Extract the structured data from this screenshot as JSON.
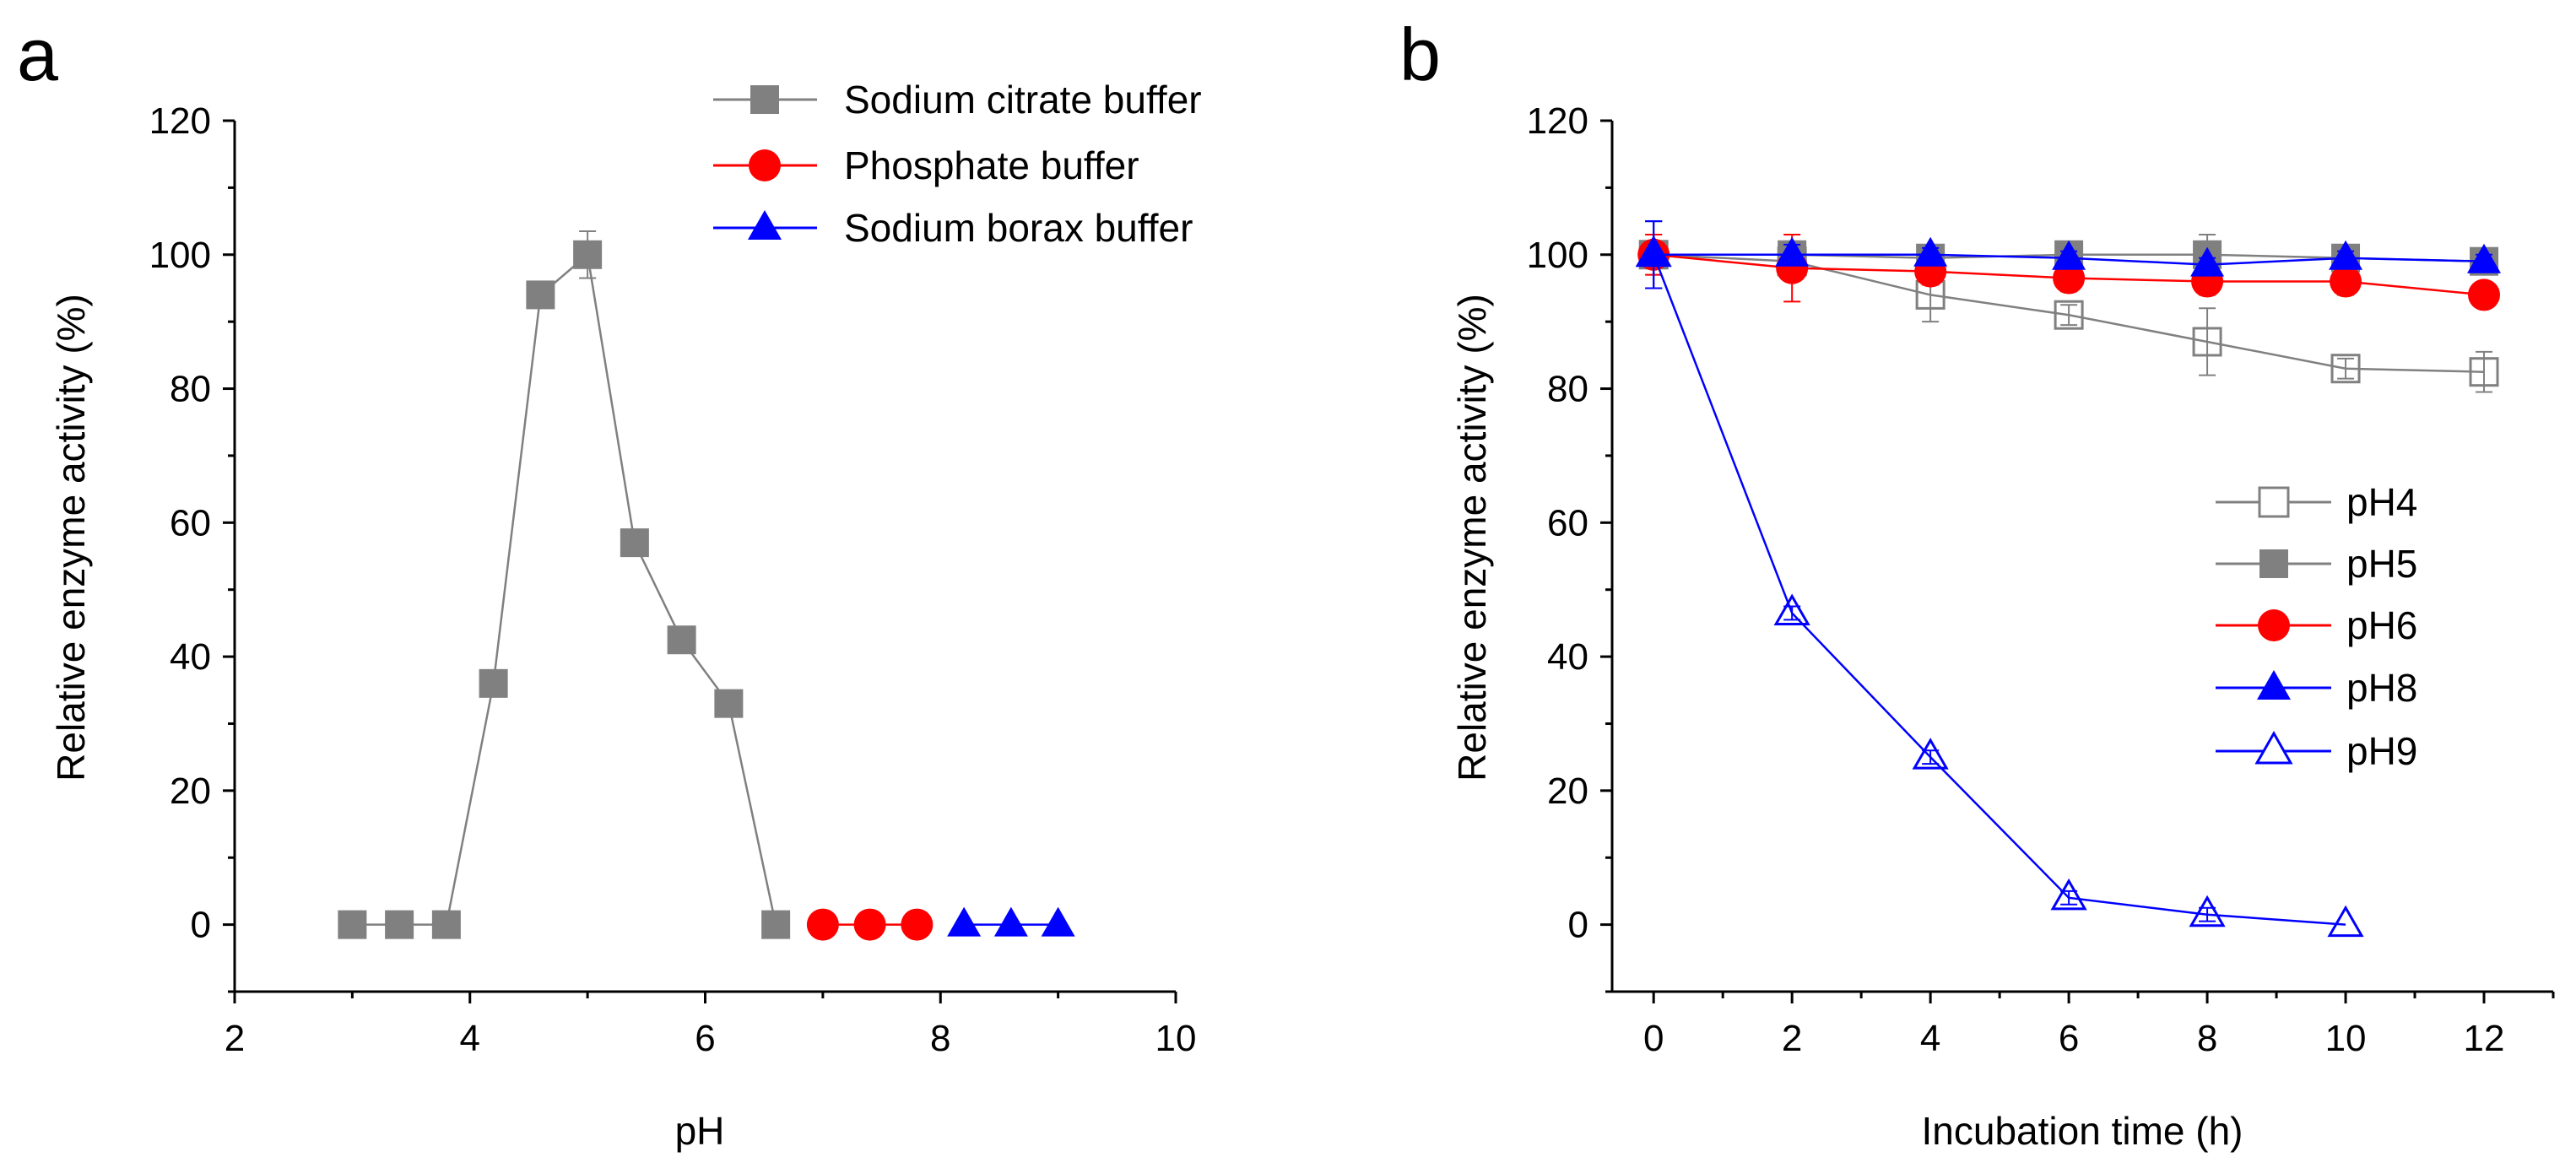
{
  "chart_data": [
    {
      "panel_label": "a",
      "type": "line",
      "xlabel": "pH",
      "ylabel": "Relative enzyme activity (%)",
      "xlim": [
        2,
        10
      ],
      "ylim": [
        -10,
        120
      ],
      "xticks": [
        2,
        4,
        6,
        8,
        10
      ],
      "yticks": [
        0,
        20,
        40,
        60,
        80,
        100,
        120
      ],
      "grid": false,
      "legend_position": "top-right",
      "series": [
        {
          "name": "Sodium citrate buffer",
          "color": "#808080",
          "marker": "square-filled",
          "x": [
            3.0,
            3.4,
            3.8,
            4.2,
            4.6,
            5.0,
            5.4,
            5.8,
            6.2,
            6.6
          ],
          "y": [
            0,
            0,
            0,
            36,
            94,
            100,
            57,
            42.5,
            33,
            0
          ],
          "error": [
            0,
            0,
            0,
            0,
            0,
            3.5,
            0,
            0,
            0,
            0
          ]
        },
        {
          "name": "Phosphate buffer",
          "color": "#ff0000",
          "marker": "circle-filled",
          "x": [
            7.0,
            7.4,
            7.8
          ],
          "y": [
            0,
            0,
            0
          ],
          "error": [
            0,
            0,
            0
          ]
        },
        {
          "name": "Sodium borax buffer",
          "color": "#0000ff",
          "marker": "triangle-filled",
          "x": [
            8.2,
            8.6,
            9.0
          ],
          "y": [
            0,
            0,
            0
          ],
          "error": [
            0,
            0,
            0
          ]
        }
      ]
    },
    {
      "panel_label": "b",
      "type": "line",
      "xlabel": "Incubation time (h)",
      "ylabel": "Relative enzyme activity (%)",
      "xlim": [
        -0.6,
        13
      ],
      "ylim": [
        -10,
        120
      ],
      "xticks": [
        0,
        2,
        4,
        6,
        8,
        10,
        12
      ],
      "yticks": [
        0,
        20,
        40,
        60,
        80,
        100,
        120
      ],
      "grid": false,
      "legend_position": "center-right",
      "series": [
        {
          "name": "pH4",
          "color": "#808080",
          "marker": "square-open",
          "x": [
            0,
            2,
            4,
            6,
            8,
            10,
            12
          ],
          "y": [
            100,
            99,
            94,
            91,
            87,
            83,
            82.5
          ],
          "error": [
            3,
            2,
            4,
            1.5,
            5,
            1.5,
            3
          ]
        },
        {
          "name": "pH5",
          "color": "#808080",
          "marker": "square-filled",
          "x": [
            0,
            2,
            4,
            6,
            8,
            10,
            12
          ],
          "y": [
            100,
            100,
            99.5,
            100,
            100,
            99.5,
            99
          ],
          "error": [
            5,
            2,
            1.5,
            1.5,
            3,
            1.5,
            1.5
          ]
        },
        {
          "name": "pH6",
          "color": "#ff0000",
          "marker": "circle-filled",
          "x": [
            0,
            2,
            4,
            6,
            8,
            10,
            12
          ],
          "y": [
            100,
            98,
            97.5,
            96.5,
            96,
            96,
            94
          ],
          "error": [
            3,
            5,
            2,
            2,
            2,
            2,
            1
          ]
        },
        {
          "name": "pH8",
          "color": "#0000ff",
          "marker": "triangle-filled",
          "x": [
            0,
            2,
            4,
            6,
            8,
            10,
            12
          ],
          "y": [
            100,
            100,
            100,
            99.5,
            98.5,
            99.5,
            99
          ],
          "error": [
            5,
            1.5,
            1,
            1,
            1,
            1,
            1
          ]
        },
        {
          "name": "pH9",
          "color": "#0000ff",
          "marker": "triangle-open",
          "x": [
            0,
            2,
            4,
            6,
            8,
            10
          ],
          "y": [
            100,
            46.5,
            25,
            4,
            1.5,
            0
          ],
          "error": [
            5,
            1,
            1,
            1,
            1,
            0
          ]
        }
      ]
    }
  ]
}
